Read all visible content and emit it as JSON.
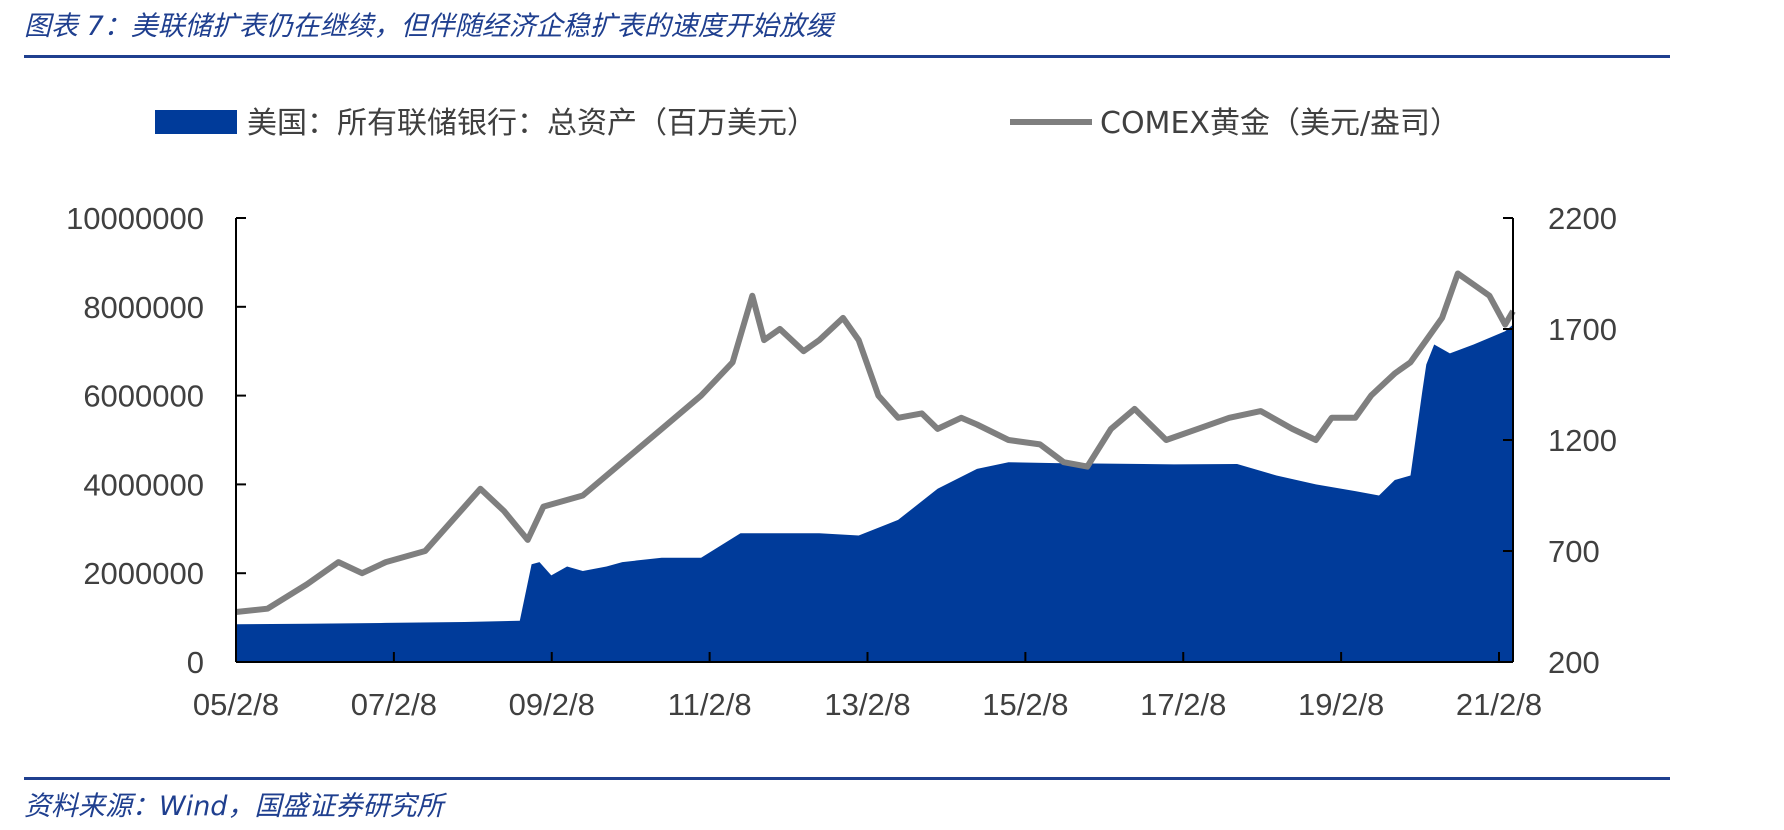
{
  "header": {
    "title": "图表 7：美联储扩表仍在继续，但伴随经济企稳扩表的速度开始放缓"
  },
  "footer": {
    "source": "资料来源：Wind，国盛证券研究所"
  },
  "colors": {
    "accent": "#1f3f8f",
    "area": "#003b9a",
    "line": "#7f7f7f"
  },
  "chart_data": {
    "type": "area",
    "legend_position": "top",
    "grid": false,
    "x_ticks": [
      "05/2/8",
      "07/2/8",
      "09/2/8",
      "11/2/8",
      "13/2/8",
      "15/2/8",
      "17/2/8",
      "19/2/8",
      "21/2/8"
    ],
    "x_range": [
      2005.1,
      2021.3
    ],
    "y_left": {
      "ylim": [
        0,
        10000000
      ],
      "ticks": [
        "0",
        "2000000",
        "4000000",
        "6000000",
        "8000000",
        "10000000"
      ]
    },
    "y_right": {
      "ylim": [
        200,
        2200
      ],
      "ticks": [
        "200",
        "700",
        "1200",
        "1700",
        "2200"
      ]
    },
    "series": [
      {
        "name": "美国：所有联储银行：总资产（百万美元）",
        "axis": "left",
        "type": "area",
        "x": [
          2005.1,
          2006,
          2007,
          2008,
          2008.7,
          2008.85,
          2008.95,
          2009.1,
          2009.3,
          2009.5,
          2009.8,
          2010,
          2010.5,
          2011,
          2011.5,
          2012,
          2012.5,
          2013,
          2013.5,
          2014,
          2014.5,
          2014.9,
          2015.5,
          2016,
          2017,
          2017.8,
          2018.3,
          2018.8,
          2019.3,
          2019.6,
          2019.8,
          2020,
          2020.15,
          2020.2,
          2020.3,
          2020.5,
          2020.8,
          2021,
          2021.2,
          2021.3
        ],
        "y": [
          850000,
          860000,
          880000,
          900000,
          930000,
          2200000,
          2250000,
          1950000,
          2150000,
          2050000,
          2150000,
          2250000,
          2350000,
          2350000,
          2900000,
          2900000,
          2900000,
          2850000,
          3200000,
          3900000,
          4350000,
          4500000,
          4480000,
          4470000,
          4450000,
          4460000,
          4200000,
          4000000,
          3850000,
          3750000,
          4100000,
          4200000,
          6100000,
          6700000,
          7150000,
          6950000,
          7150000,
          7300000,
          7450000,
          7600000
        ]
      },
      {
        "name": "COMEX黄金（美元/盎司）",
        "axis": "right",
        "type": "line",
        "x": [
          2005.1,
          2005.5,
          2006,
          2006.4,
          2006.7,
          2007,
          2007.5,
          2008,
          2008.2,
          2008.5,
          2008.8,
          2009,
          2009.5,
          2010,
          2010.5,
          2011,
          2011.4,
          2011.65,
          2011.8,
          2012,
          2012.3,
          2012.5,
          2012.8,
          2013,
          2013.25,
          2013.5,
          2013.8,
          2014,
          2014.3,
          2014.5,
          2014.9,
          2015.3,
          2015.6,
          2015.9,
          2016.2,
          2016.5,
          2016.9,
          2017.3,
          2017.7,
          2018.1,
          2018.5,
          2018.8,
          2019,
          2019.3,
          2019.5,
          2019.8,
          2020,
          2020.2,
          2020.4,
          2020.6,
          2020.8,
          2021,
          2021.2,
          2021.3
        ],
        "y": [
          425,
          440,
          550,
          650,
          600,
          650,
          700,
          900,
          980,
          880,
          750,
          900,
          950,
          1100,
          1250,
          1400,
          1550,
          1850,
          1650,
          1700,
          1600,
          1650,
          1750,
          1650,
          1400,
          1300,
          1320,
          1250,
          1300,
          1270,
          1200,
          1180,
          1100,
          1080,
          1250,
          1340,
          1200,
          1250,
          1300,
          1330,
          1250,
          1200,
          1300,
          1300,
          1400,
          1500,
          1550,
          1650,
          1750,
          1950,
          1900,
          1850,
          1720,
          1780
        ]
      }
    ]
  }
}
